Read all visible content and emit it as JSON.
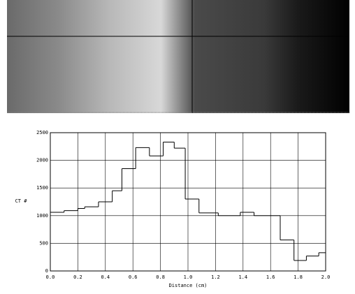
{
  "chart_data": {
    "type": "step",
    "xlabel": "Distance (cm)",
    "ylabel": "CT #",
    "x": [
      0.0,
      0.1,
      0.2,
      0.25,
      0.35,
      0.45,
      0.52,
      0.62,
      0.72,
      0.82,
      0.9,
      0.98,
      1.08,
      1.22,
      1.38,
      1.48,
      1.67,
      1.77,
      1.86,
      1.95
    ],
    "values": [
      1060,
      1090,
      1130,
      1160,
      1250,
      1450,
      1850,
      2230,
      2080,
      2330,
      2220,
      1300,
      1050,
      1000,
      1060,
      1000,
      560,
      190,
      270,
      330
    ],
    "color": "#000000",
    "xlim": [
      0,
      2.0
    ],
    "xticks": [
      {
        "value": 0,
        "label": "0.0"
      },
      {
        "value": 0.2,
        "label": "0.2"
      },
      {
        "value": 0.4,
        "label": "0.4"
      },
      {
        "value": 0.6,
        "label": "0.6"
      },
      {
        "value": 0.8,
        "label": "0.8"
      },
      {
        "value": 1.0,
        "label": "1.0"
      },
      {
        "value": 1.2,
        "label": "1.2"
      },
      {
        "value": 1.4,
        "label": "1.4"
      },
      {
        "value": 1.6,
        "label": "1.6"
      },
      {
        "value": 1.8,
        "label": "1.8"
      },
      {
        "value": 2.0,
        "label": "2.0"
      }
    ],
    "ylim": [
      0,
      2500
    ],
    "yticks": [
      0,
      500,
      1000,
      1500,
      2000,
      2500
    ],
    "grid": true
  }
}
